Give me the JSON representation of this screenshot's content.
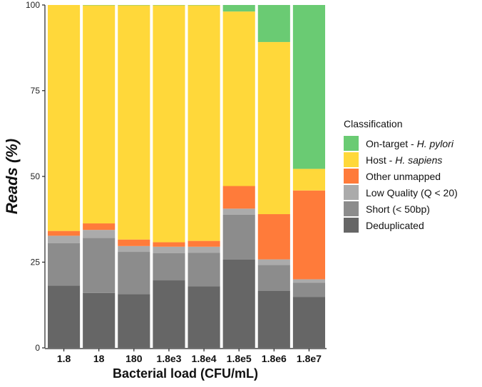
{
  "chart_data": {
    "type": "bar",
    "stacked": true,
    "title": "",
    "xlabel": "Bacterial load (CFU/mL)",
    "ylabel": "Reads (%)",
    "ylim": [
      0,
      100
    ],
    "yticks": [
      "0",
      "25",
      "50",
      "75",
      "100"
    ],
    "categories": [
      "1.8",
      "18",
      "180",
      "1.8e3",
      "1.8e4",
      "1.8e5",
      "1.8e6",
      "1.8e7"
    ],
    "legend_title": "Classification",
    "legend_position": "right",
    "series": [
      {
        "name": "Deduplicated",
        "color": "#666666",
        "values": [
          18.2,
          16.0,
          15.7,
          19.7,
          18.0,
          25.8,
          16.6,
          14.9
        ]
      },
      {
        "name": "Short (< 50bp)",
        "color": "#8c8c8c",
        "values": [
          12.3,
          16.1,
          12.3,
          7.9,
          9.7,
          13.0,
          7.6,
          4.1
        ]
      },
      {
        "name": "Low Quality (Q < 20)",
        "color": "#ababab",
        "values": [
          2.2,
          2.3,
          1.7,
          1.9,
          1.8,
          1.8,
          1.6,
          1.0
        ]
      },
      {
        "name": "Other unmapped",
        "color": "#ff7b3a",
        "values": [
          1.4,
          1.9,
          1.9,
          1.3,
          1.7,
          6.6,
          13.2,
          25.9
        ]
      },
      {
        "name": "Host - H. sapiens",
        "color": "#ffd83a",
        "values": [
          65.9,
          63.6,
          68.3,
          69.1,
          68.7,
          50.9,
          50.2,
          6.3
        ]
      },
      {
        "name": "On-target - H. pylori",
        "color": "#6acb73",
        "values": [
          0.0,
          0.1,
          0.1,
          0.1,
          0.1,
          1.9,
          10.8,
          47.8
        ]
      }
    ]
  },
  "legend": {
    "title": "Classification",
    "items": [
      {
        "prefix": "On-target - ",
        "italic": "H. pylori",
        "color": "#6acb73"
      },
      {
        "prefix": "Host - ",
        "italic": "H. sapiens",
        "color": "#ffd83a"
      },
      {
        "prefix": "Other unmapped",
        "italic": "",
        "color": "#ff7b3a"
      },
      {
        "prefix": "Low Quality (Q < 20)",
        "italic": "",
        "color": "#ababab"
      },
      {
        "prefix": "Short (< 50bp)",
        "italic": "",
        "color": "#8c8c8c"
      },
      {
        "prefix": "Deduplicated",
        "italic": "",
        "color": "#666666"
      }
    ]
  }
}
